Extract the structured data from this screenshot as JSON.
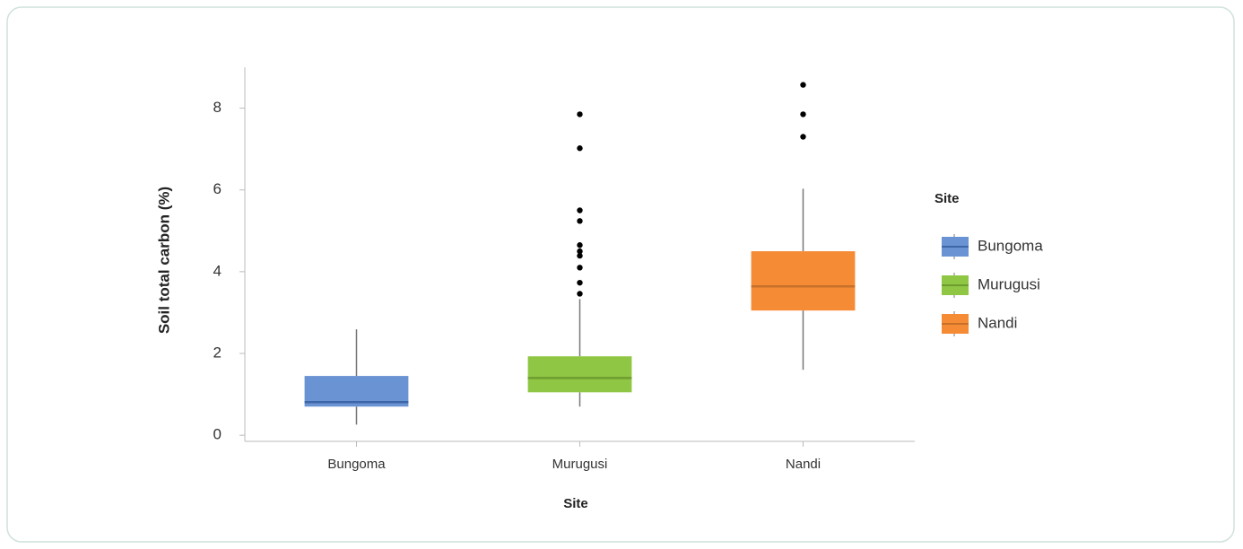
{
  "chart_data": {
    "type": "box",
    "x_label": "Site",
    "y_label": "Soil total carbon (%)",
    "legend_title": "Site",
    "categories": [
      "Bungoma",
      "Murugusi",
      "Nandi"
    ],
    "ylim": [
      -0.15,
      9
    ],
    "yticks": [
      0,
      2,
      4,
      6,
      8
    ],
    "legend": "right",
    "series": [
      {
        "name": "Bungoma",
        "color": "#6a93d3",
        "median_color": "#3d66a8",
        "whisker_low": 0.26,
        "q1": 0.7,
        "median": 0.81,
        "q3": 1.45,
        "whisker_high": 2.59,
        "outliers": []
      },
      {
        "name": "Murugusi",
        "color": "#8fc644",
        "median_color": "#6e9c30",
        "whisker_low": 0.7,
        "q1": 1.05,
        "median": 1.4,
        "q3": 1.93,
        "whisker_high": 3.33,
        "outliers": [
          3.46,
          3.73,
          4.1,
          4.39,
          4.5,
          4.65,
          5.24,
          5.5,
          7.02,
          7.85
        ]
      },
      {
        "name": "Nandi",
        "color": "#f58b35",
        "median_color": "#c8702a",
        "whisker_low": 1.6,
        "q1": 3.05,
        "median": 3.64,
        "q3": 4.5,
        "whisker_high": 6.03,
        "outliers": [
          7.3,
          7.85,
          8.57
        ]
      }
    ]
  }
}
